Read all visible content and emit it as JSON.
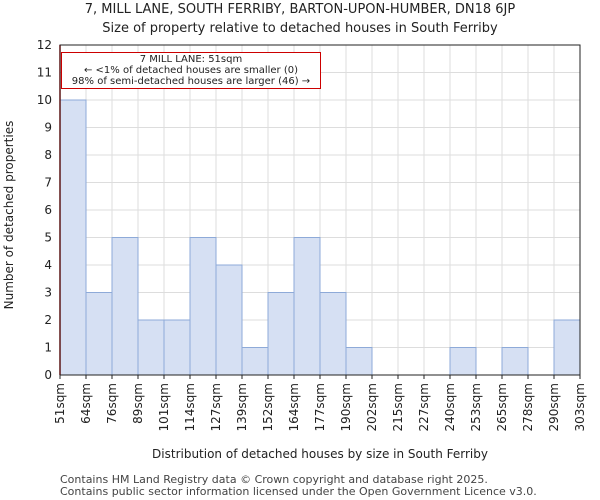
{
  "title_line1": "7, MILL LANE, SOUTH FERRIBY, BARTON-UPON-HUMBER, DN18 6JP",
  "title_line2": "Size of property relative to detached houses in South Ferriby",
  "chart_data": {
    "type": "bar",
    "xlabel": "Distribution of detached houses by size in South Ferriby",
    "ylabel": "Number of detached properties",
    "ylim": [
      0,
      12
    ],
    "yticks": [
      0,
      1,
      2,
      3,
      4,
      5,
      6,
      7,
      8,
      9,
      10,
      11,
      12
    ],
    "edges": [
      "51sqm",
      "64sqm",
      "76sqm",
      "89sqm",
      "101sqm",
      "114sqm",
      "127sqm",
      "139sqm",
      "152sqm",
      "164sqm",
      "177sqm",
      "190sqm",
      "202sqm",
      "215sqm",
      "227sqm",
      "240sqm",
      "253sqm",
      "265sqm",
      "278sqm",
      "290sqm",
      "303sqm"
    ],
    "values": [
      10,
      3,
      5,
      2,
      2,
      5,
      4,
      1,
      3,
      5,
      3,
      1,
      0,
      0,
      0,
      1,
      0,
      1,
      0,
      2
    ],
    "bar_color": "#d6e0f3",
    "bar_edge_color": "#8eaad8",
    "marker_color": "#cc0000",
    "grid": true,
    "marker_at": "51sqm",
    "annotation": {
      "line1": "7 MILL LANE: 51sqm",
      "line2": "← <1% of detached houses are smaller (0)",
      "line3": "98% of semi-detached houses are larger (46) →"
    }
  },
  "footer": {
    "line1": "Contains HM Land Registry data © Crown copyright and database right 2025.",
    "line2": "Contains public sector information licensed under the Open Government Licence v3.0."
  }
}
